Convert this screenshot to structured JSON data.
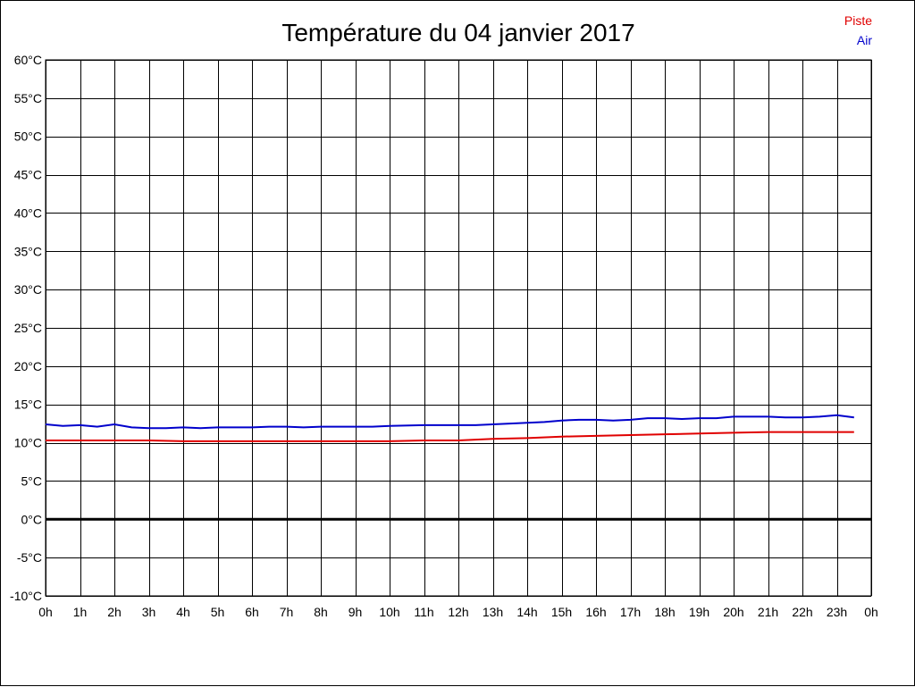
{
  "chart_data": {
    "type": "line",
    "title": "Température du 04 janvier 2017",
    "xlabel": "",
    "ylabel": "",
    "x_tick_labels": [
      "0h",
      "1h",
      "2h",
      "3h",
      "4h",
      "5h",
      "6h",
      "7h",
      "8h",
      "9h",
      "10h",
      "11h",
      "12h",
      "13h",
      "14h",
      "15h",
      "16h",
      "17h",
      "18h",
      "19h",
      "20h",
      "21h",
      "22h",
      "23h",
      "0h"
    ],
    "y_ticks": [
      60,
      55,
      50,
      45,
      40,
      35,
      30,
      25,
      20,
      15,
      10,
      5,
      0,
      -5,
      -10
    ],
    "y_tick_unit": "°C",
    "xlim": [
      0,
      24
    ],
    "ylim": [
      -10,
      60
    ],
    "grid": true,
    "legend_position": "top-right",
    "zero_line": true,
    "series": [
      {
        "name": "Piste",
        "color": "#e00000",
        "x": [
          0,
          1,
          2,
          3,
          4,
          5,
          6,
          7,
          8,
          9,
          10,
          11,
          12,
          13,
          14,
          15,
          16,
          17,
          18,
          19,
          20,
          21,
          22,
          23,
          23.5
        ],
        "values": [
          10.3,
          10.3,
          10.3,
          10.3,
          10.2,
          10.2,
          10.2,
          10.2,
          10.2,
          10.2,
          10.2,
          10.3,
          10.3,
          10.5,
          10.6,
          10.8,
          10.9,
          11.0,
          11.1,
          11.2,
          11.3,
          11.4,
          11.4,
          11.4,
          11.4
        ]
      },
      {
        "name": "Air",
        "color": "#0000cc",
        "x": [
          0,
          0.5,
          1,
          1.5,
          2,
          2.5,
          3,
          3.5,
          4,
          4.5,
          5,
          5.5,
          6,
          6.5,
          7,
          7.5,
          8,
          8.5,
          9,
          9.5,
          10,
          11,
          12,
          12.5,
          13,
          13.5,
          14,
          14.5,
          15,
          15.5,
          16,
          16.5,
          17,
          17.5,
          18,
          18.5,
          19,
          19.5,
          20,
          20.5,
          21,
          21.5,
          22,
          22.5,
          23,
          23.5
        ],
        "values": [
          12.4,
          12.2,
          12.3,
          12.1,
          12.4,
          12.0,
          11.9,
          11.9,
          12.0,
          11.9,
          12.0,
          12.0,
          12.0,
          12.1,
          12.1,
          12.0,
          12.1,
          12.1,
          12.1,
          12.1,
          12.2,
          12.3,
          12.3,
          12.3,
          12.4,
          12.5,
          12.6,
          12.7,
          12.9,
          13.0,
          13.0,
          12.9,
          13.0,
          13.2,
          13.2,
          13.1,
          13.2,
          13.2,
          13.4,
          13.4,
          13.4,
          13.3,
          13.3,
          13.4,
          13.6,
          13.3
        ]
      }
    ]
  }
}
